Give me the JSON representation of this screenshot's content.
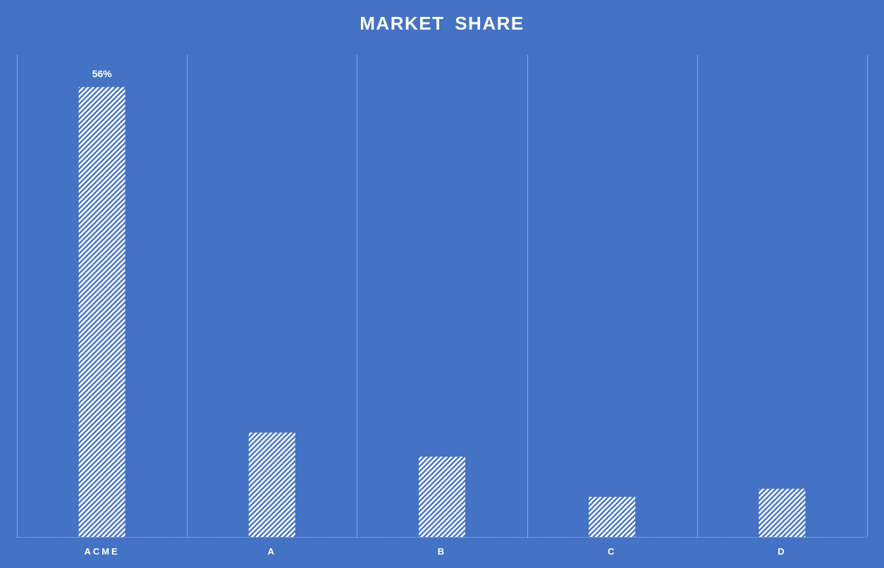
{
  "chart_data": {
    "type": "bar",
    "title": "MARKET SHARE",
    "xlabel": "",
    "ylabel": "",
    "categories": [
      "ACME",
      "A",
      "B",
      "C",
      "D"
    ],
    "values": [
      56,
      13,
      10,
      5,
      6
    ],
    "data_labels": [
      "56%",
      "",
      "",
      "",
      ""
    ],
    "ylim": [
      0,
      60
    ],
    "grid": "vertical",
    "legend": "none",
    "bar_fill": "diagonal-hatch"
  },
  "colors": {
    "background": "#4472c4",
    "bar_pattern": "#ffffff",
    "gridline": "#8eaadc",
    "text": "#ffffff"
  }
}
